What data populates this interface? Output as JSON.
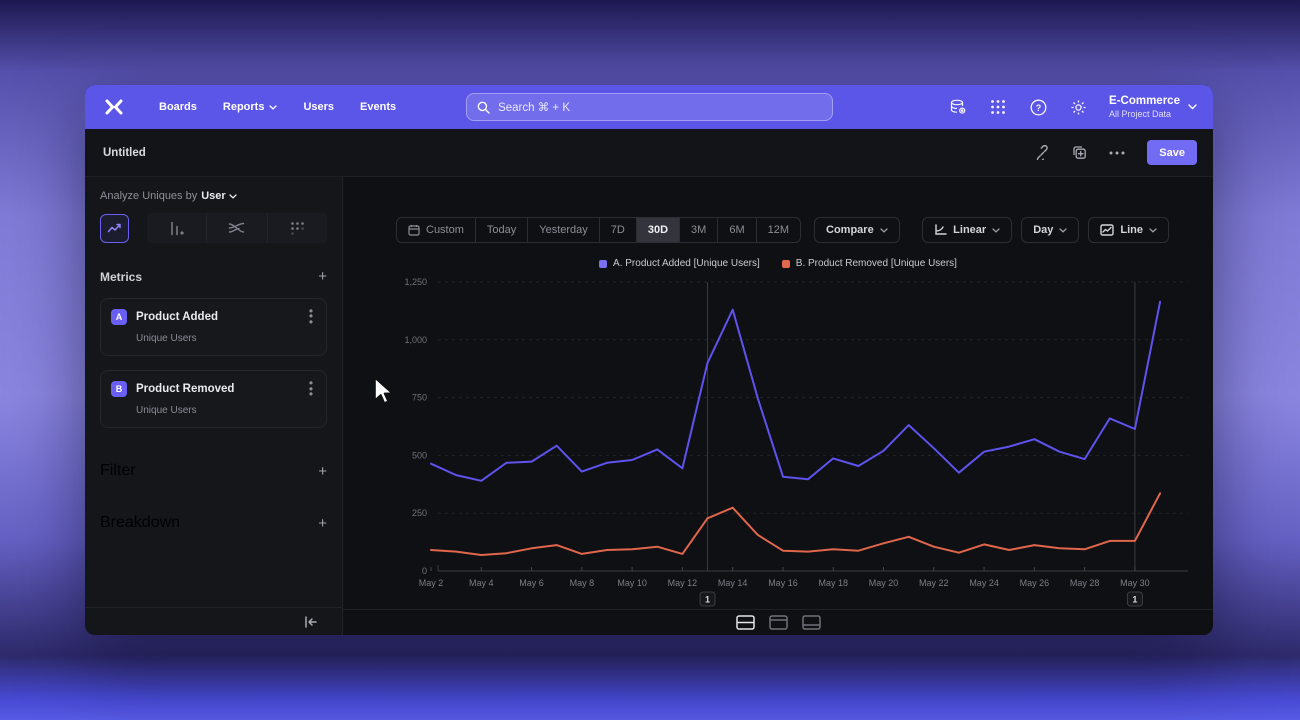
{
  "nav": {
    "items": [
      {
        "label": "Boards",
        "chevron": false
      },
      {
        "label": "Reports",
        "chevron": true
      },
      {
        "label": "Users",
        "chevron": false
      },
      {
        "label": "Events",
        "chevron": false
      }
    ],
    "search_placeholder": "Search  ⌘ + K",
    "project": {
      "name": "E-Commerce",
      "subtitle": "All Project Data"
    }
  },
  "report_bar": {
    "title": "Untitled",
    "save_label": "Save"
  },
  "sidebar": {
    "analyze_label": "Analyze Uniques by",
    "analyze_value": "User",
    "metrics_title": "Metrics",
    "metrics": [
      {
        "key": "A",
        "title": "Product Added",
        "subtitle": "Unique Users"
      },
      {
        "key": "B",
        "title": "Product Removed",
        "subtitle": "Unique Users"
      }
    ],
    "sections": [
      {
        "label": "Filter"
      },
      {
        "label": "Breakdown"
      }
    ]
  },
  "toolbar": {
    "ranges": [
      "Custom",
      "Today",
      "Yesterday",
      "7D",
      "30D",
      "3M",
      "6M",
      "12M"
    ],
    "selected_range": "30D",
    "compare_label": "Compare",
    "scale_label": "Linear",
    "interval_label": "Day",
    "chart_type_label": "Line"
  },
  "colors": {
    "accent_purple": "#6a5ff2",
    "nav_purple": "#5b55e8",
    "series_a": "#5e53ee",
    "series_b": "#e0664c"
  },
  "chart_data": {
    "type": "line",
    "x": [
      "May 2",
      "May 3",
      "May 4",
      "May 5",
      "May 6",
      "May 7",
      "May 8",
      "May 9",
      "May 10",
      "May 11",
      "May 12",
      "May 13",
      "May 14",
      "May 15",
      "May 16",
      "May 17",
      "May 18",
      "May 19",
      "May 20",
      "May 21",
      "May 22",
      "May 23",
      "May 24",
      "May 25",
      "May 26",
      "May 27",
      "May 28",
      "May 29",
      "May 30",
      "May 31"
    ],
    "x_tick_labels": [
      "May 2",
      "May 4",
      "May 6",
      "May 8",
      "May 10",
      "May 12",
      "May 14",
      "May 16",
      "May 18",
      "May 20",
      "May 22",
      "May 24",
      "May 26",
      "May 28",
      "May 30"
    ],
    "series": [
      {
        "name": "A. Product Added [Unique Users]",
        "color": "#5e53ee",
        "swatch": "#7a6ff2",
        "values": [
          464,
          415,
          390,
          468,
          473,
          542,
          430,
          468,
          480,
          526,
          444,
          900,
          1130,
          747,
          408,
          397,
          487,
          454,
          520,
          631,
          531,
          425,
          516,
          538,
          570,
          516,
          484,
          660,
          614,
          1165
        ]
      },
      {
        "name": "B. Product Removed [Unique Users]",
        "color": "#e0664c",
        "swatch": "#e0664c",
        "values": [
          91,
          84,
          69,
          77,
          98,
          112,
          74,
          91,
          94,
          105,
          74,
          228,
          274,
          156,
          88,
          84,
          94,
          88,
          120,
          148,
          105,
          79,
          115,
          91,
          112,
          98,
          94,
          130,
          130,
          336
        ]
      }
    ],
    "ylim": [
      0,
      1250
    ],
    "yticks": [
      0,
      250,
      500,
      750,
      1000,
      1250
    ],
    "ytick_labels": [
      "0",
      "250",
      "500",
      "750",
      "1,000",
      "1,250"
    ],
    "annotations": [
      {
        "x": "May 13",
        "x_index": 11,
        "label": "1"
      },
      {
        "x": "May 30",
        "x_index": 28,
        "label": "1"
      }
    ],
    "grid": "horizontal-dashed",
    "legend_position": "top-center"
  }
}
